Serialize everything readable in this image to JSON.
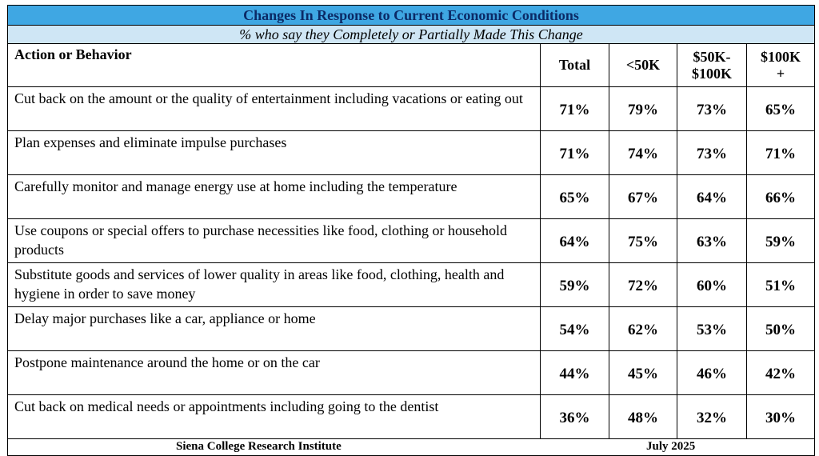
{
  "title": "Changes In Response to Current Economic Conditions",
  "subtitle": "% who say they Completely or Partially Made This Change",
  "headers": {
    "action": "Action or Behavior",
    "total": "Total",
    "lt50": "<50K",
    "mid_line1": "$50K-",
    "mid_line2": "$100K",
    "high_line1": "$100K",
    "high_line2": "+"
  },
  "rows": [
    {
      "label": "Cut back on the amount or the quality of entertainment including vacations or eating out",
      "total": "71%",
      "lt50": "79%",
      "mid": "73%",
      "high": "65%"
    },
    {
      "label": "Plan expenses and eliminate impulse purchases",
      "total": "71%",
      "lt50": "74%",
      "mid": "73%",
      "high": "71%"
    },
    {
      "label": "Carefully monitor and manage energy use at home including the temperature",
      "total": "65%",
      "lt50": "67%",
      "mid": "64%",
      "high": "66%"
    },
    {
      "label": "Use coupons or special offers to purchase necessities like food, clothing or household products",
      "total": "64%",
      "lt50": "75%",
      "mid": "63%",
      "high": "59%"
    },
    {
      "label": "Substitute goods and services of lower quality in areas like food, clothing, health and hygiene in order to save money",
      "total": "59%",
      "lt50": "72%",
      "mid": "60%",
      "high": "51%"
    },
    {
      "label": "Delay major purchases like a car, appliance or home",
      "total": "54%",
      "lt50": "62%",
      "mid": "53%",
      "high": "50%"
    },
    {
      "label": "Postpone maintenance around the home or on the car",
      "total": "44%",
      "lt50": "45%",
      "mid": "46%",
      "high": "42%"
    },
    {
      "label": "Cut back on medical needs or appointments including going to the dentist",
      "total": "36%",
      "lt50": "48%",
      "mid": "32%",
      "high": "30%"
    }
  ],
  "footer": {
    "source": "Siena College Research Institute",
    "date": "July 2025"
  },
  "colors": {
    "title_bg": "#3fa7e3",
    "title_text": "#0b2a66",
    "subtitle_bg": "#cfe6f5"
  }
}
